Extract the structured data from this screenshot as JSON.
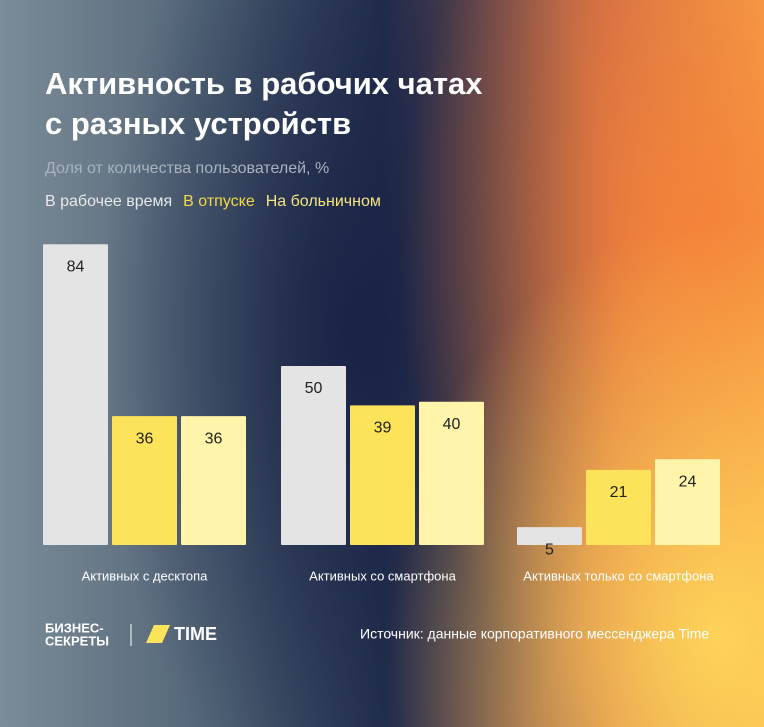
{
  "chart_data": {
    "type": "bar",
    "title": [
      "Активность в рабочих чатах",
      "с разных устройств"
    ],
    "subtitle": "Доля от количества пользователей, %",
    "categories": [
      "Активных с десктопа",
      "Активных со смартфона",
      "Активных только со смартфона"
    ],
    "series": [
      {
        "name": "В рабочее время",
        "color": "#e4e4e4",
        "values": [
          84,
          50,
          5
        ]
      },
      {
        "name": "В отпуске",
        "color": "#fde35a",
        "values": [
          36,
          39,
          21
        ]
      },
      {
        "name": "На больничном",
        "color": "#fff4aa",
        "values": [
          36,
          40,
          24
        ]
      }
    ],
    "legend_colors": [
      "#e8e8e8",
      "#f6d94a",
      "#f8e47c"
    ],
    "source": "Источник: данные корпоративного мессенджера Time",
    "brands": [
      "БИЗНЕС-",
      "СЕКРЕТЫ",
      "TIME"
    ]
  }
}
